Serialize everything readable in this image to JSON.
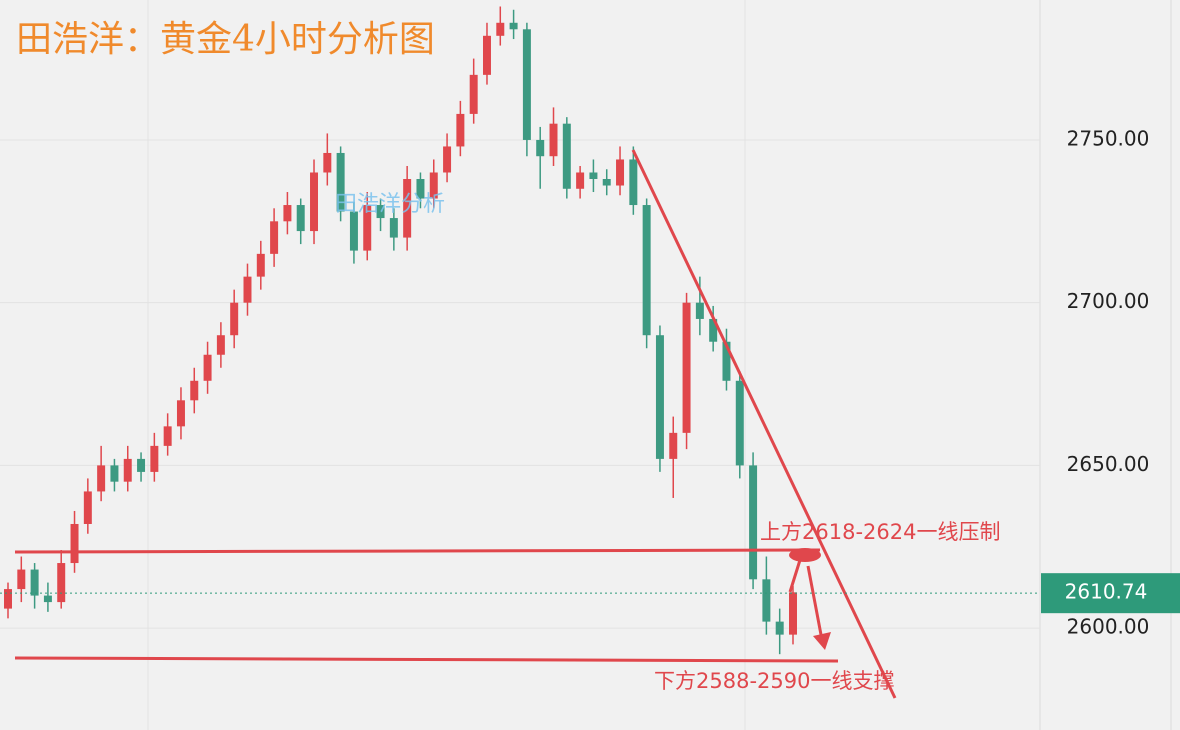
{
  "chart_data": {
    "type": "candlestick",
    "title": "田浩洋：黄金4小时分析图",
    "watermark": "田浩洋分析",
    "up_color": "#e0474c",
    "down_color": "#3d9a82",
    "candles": {
      "open": [
        2606,
        2612,
        2618,
        2610,
        2608,
        2620,
        2632,
        2642,
        2650,
        2645,
        2652,
        2648,
        2656,
        2662,
        2670,
        2676,
        2684,
        2690,
        2700,
        2708,
        2715,
        2725,
        2730,
        2722,
        2740,
        2746,
        2728,
        2716,
        2730,
        2726,
        2720,
        2738,
        2732,
        2740,
        2748,
        2758,
        2770,
        2782,
        2786,
        2784,
        2750,
        2745,
        2755,
        2735,
        2740,
        2738,
        2736,
        2744,
        2730,
        2690,
        2652,
        2660,
        2700,
        2695,
        2688,
        2676,
        2650,
        2615,
        2602,
        2598
      ],
      "high": [
        2614,
        2622,
        2620,
        2614,
        2624,
        2636,
        2646,
        2656,
        2652,
        2656,
        2654,
        2660,
        2666,
        2674,
        2680,
        2688,
        2694,
        2704,
        2712,
        2719,
        2729,
        2734,
        2732,
        2744,
        2752,
        2748,
        2731,
        2734,
        2732,
        2729,
        2742,
        2740,
        2744,
        2752,
        2762,
        2775,
        2786,
        2791,
        2790,
        2786,
        2754,
        2760,
        2757,
        2742,
        2744,
        2741,
        2748,
        2748,
        2732,
        2693,
        2665,
        2703,
        2708,
        2699,
        2692,
        2679,
        2654,
        2622,
        2606,
        2613
      ],
      "low": [
        2603,
        2608,
        2606,
        2605,
        2606,
        2617,
        2629,
        2639,
        2642,
        2642,
        2645,
        2645,
        2653,
        2658,
        2666,
        2672,
        2680,
        2686,
        2696,
        2704,
        2711,
        2721,
        2718,
        2718,
        2736,
        2725,
        2712,
        2713,
        2722,
        2716,
        2716,
        2729,
        2729,
        2737,
        2745,
        2755,
        2767,
        2779,
        2781,
        2745,
        2735,
        2742,
        2732,
        2732,
        2734,
        2733,
        2733,
        2727,
        2686,
        2648,
        2640,
        2655,
        2690,
        2685,
        2673,
        2646,
        2612,
        2598,
        2592,
        2595
      ],
      "close": [
        2612,
        2618,
        2610,
        2608,
        2620,
        2632,
        2642,
        2650,
        2645,
        2652,
        2648,
        2656,
        2662,
        2670,
        2676,
        2684,
        2690,
        2700,
        2708,
        2715,
        2725,
        2730,
        2722,
        2740,
        2746,
        2728,
        2716,
        2730,
        2726,
        2720,
        2738,
        2732,
        2740,
        2748,
        2758,
        2770,
        2782,
        2786,
        2784,
        2750,
        2745,
        2755,
        2735,
        2740,
        2738,
        2736,
        2744,
        2730,
        2690,
        2652,
        2660,
        2700,
        2695,
        2688,
        2676,
        2650,
        2615,
        2602,
        2598,
        2611
      ]
    },
    "ylim": [
      2568.7,
      2793
    ],
    "yticks": [
      {
        "value": 2600,
        "label": "2600.00"
      },
      {
        "value": 2650,
        "label": "2650.00"
      },
      {
        "value": 2700,
        "label": "2700.00"
      },
      {
        "value": 2750,
        "label": "2750.00"
      }
    ],
    "grid": true,
    "last_price": 2610.74,
    "last_price_color": "#2e9a7a",
    "annotations": [
      "上方2618-2624一线压制",
      "下方2588-2590一线支撑"
    ]
  }
}
